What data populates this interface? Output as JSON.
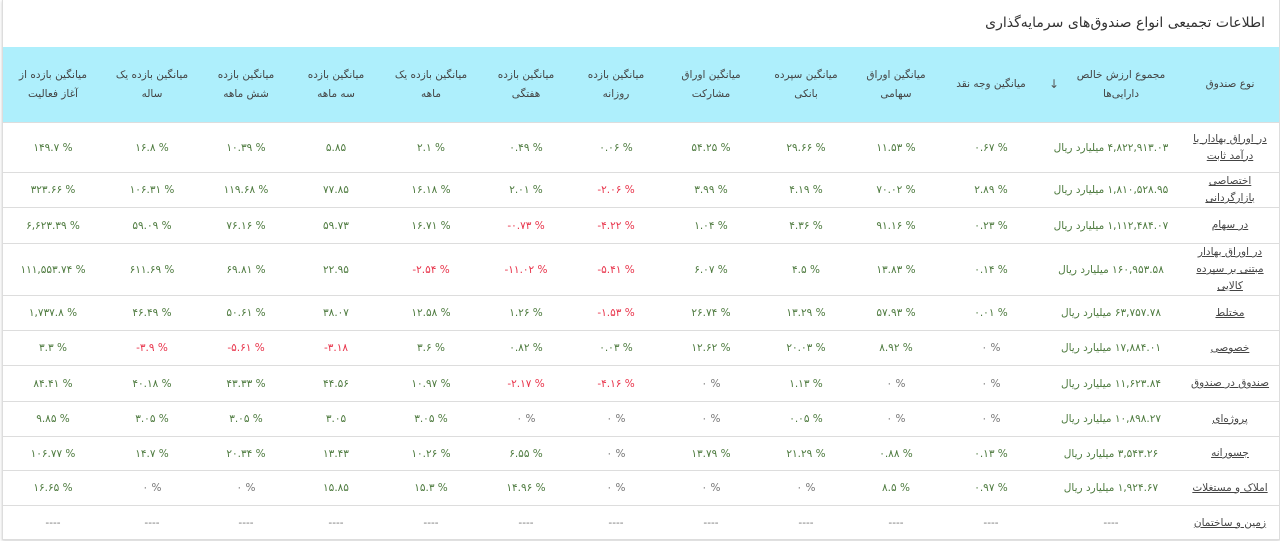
{
  "title": "اطلاعات تجمیعی انواع صندوق‌های سرمایه‌گذاری",
  "colors": {
    "header_bg": "#aeeffc",
    "positive": "#4d7a3e",
    "negative": "#e8334a",
    "zero": "#777777"
  },
  "columns": [
    "نوع صندوق",
    "مجموع ارزش خالص دارایی‌ها",
    "میانگین وجه نقد",
    "میانگین اوراق سهامی",
    "میانگین سپرده بانکی",
    "میانگین اوراق مشارکت",
    "میانگین بازده روزانه",
    "میانگین بازده هفتگی",
    "میانگین بازده یک ماهه",
    "میانگین بازده سه ماهه",
    "میانگین بازده شش ماهه",
    "میانگین بازده یک ساله",
    "میانگین بازده از آغاز فعالیت"
  ],
  "sort_icon": "arrow-down-icon",
  "rows": [
    {
      "name": "در اوراق بهادار با درآمد ثابت",
      "values": [
        "۴,۸۲۲,۹۱۳.۰۳ میلیارد ریال",
        "۰.۶۷ %",
        "۱۱.۵۳ %",
        "۲۹.۶۶ %",
        "۵۴.۲۵ %",
        "۰.۰۶ %",
        "۰.۴۹ %",
        "۲.۱ %",
        "۵.۸۵",
        "۱۰.۳۹ %",
        "۱۶.۸ %",
        "۱۴۹.۷ %"
      ]
    },
    {
      "name": "اختصاصی بازارگردانی",
      "values": [
        "۱,۸۱۰,۵۲۸.۹۵ میلیارد ریال",
        "۲.۸۹ %",
        "۷۰.۰۲ %",
        "۴.۱۹ %",
        "۳.۹۹ %",
        "-۲.۰۶ %",
        "۲.۰۱ %",
        "۱۶.۱۸ %",
        "۷۷.۸۵",
        "۱۱۹.۶۸ %",
        "۱۰۶.۳۱ %",
        "۳۲۳.۶۶ %"
      ]
    },
    {
      "name": "در سهام",
      "values": [
        "۱,۱۱۲,۴۸۴.۰۷ میلیارد ریال",
        "۰.۲۳ %",
        "۹۱.۱۶ %",
        "۴.۳۶ %",
        "۱.۰۴ %",
        "-۴.۲۲ %",
        "-۰.۷۳ %",
        "۱۶.۷۱ %",
        "۵۹.۷۳",
        "۷۶.۱۶ %",
        "۵۹.۰۹ %",
        "۶,۶۲۳.۳۹ %"
      ]
    },
    {
      "name": "در اوراق بهادار مبتنی بر سپرده کالایی",
      "values": [
        "۱۶۰,۹۵۳.۵۸ میلیارد ریال",
        "۰.۱۴ %",
        "۱۳.۸۳ %",
        "۴.۵ %",
        "۶.۰۷ %",
        "-۵.۴۱ %",
        "-۱۱.۰۲ %",
        "-۲.۵۴ %",
        "۲۲.۹۵",
        "۶۹.۸۱ %",
        "۶۱۱.۶۹ %",
        "۱۱۱,۵۵۳.۷۴ %"
      ]
    },
    {
      "name": "مختلط",
      "values": [
        "۶۳,۷۵۷.۷۸ میلیارد ریال",
        "۰.۰۱ %",
        "۵۷.۹۳ %",
        "۱۳.۲۹ %",
        "۲۶.۷۴ %",
        "-۱.۵۳ %",
        "۱.۲۶ %",
        "۱۲.۵۸ %",
        "۳۸.۰۷",
        "۵۰.۶۱ %",
        "۴۶.۴۹ %",
        "۱,۷۳۷.۸ %"
      ]
    },
    {
      "name": "خصوصی",
      "values": [
        "۱۷,۸۸۴.۰۱ میلیارد ریال",
        "۰ %",
        "۸.۹۲ %",
        "۲۰.۰۳ %",
        "۱۲.۶۲ %",
        "۰.۰۳ %",
        "۰.۸۲ %",
        "۳.۶ %",
        "-۳.۱۸",
        "-۵.۶۱ %",
        "-۳.۹ %",
        "۳.۳ %"
      ]
    },
    {
      "name": "صندوق در صندوق",
      "values": [
        "۱۱,۶۲۳.۸۴ میلیارد ریال",
        "۰ %",
        "۰ %",
        "۱.۱۳ %",
        "۰ %",
        "-۴.۱۶ %",
        "-۲.۱۷ %",
        "۱۰.۹۷ %",
        "۴۴.۵۶",
        "۴۳.۳۳ %",
        "۴۰.۱۸ %",
        "۸۴.۴۱ %"
      ]
    },
    {
      "name": "پروژه‌ای",
      "values": [
        "۱۰,۸۹۸.۲۷ میلیارد ریال",
        "۰ %",
        "۰ %",
        "۰.۰۵ %",
        "۰ %",
        "۰ %",
        "۰ %",
        "۳.۰۵ %",
        "۳.۰۵",
        "۳.۰۵ %",
        "۳.۰۵ %",
        "۹.۸۵ %"
      ]
    },
    {
      "name": "جسورانه",
      "values": [
        "۳,۵۴۳.۲۶ میلیارد ریال",
        "۰.۱۳ %",
        "۰.۸۸ %",
        "۲۱.۲۹ %",
        "۱۳.۷۹ %",
        "۰ %",
        "۶.۵۵ %",
        "۱۰.۲۶ %",
        "۱۳.۴۳",
        "۲۰.۳۴ %",
        "۱۴.۷ %",
        "۱۰۶.۷۷ %"
      ]
    },
    {
      "name": "املاک و مستغلات",
      "values": [
        "۱,۹۲۴.۶۷ میلیارد ریال",
        "۰.۹۷ %",
        "۸.۵ %",
        "۰ %",
        "۰ %",
        "۰ %",
        "۱۴.۹۶ %",
        "۱۵.۳ %",
        "۱۵.۸۵",
        "۰ %",
        "۰ %",
        "۱۶.۶۵ %"
      ]
    },
    {
      "name": "زمین و ساختمان",
      "values": [
        "----",
        "----",
        "----",
        "----",
        "----",
        "----",
        "----",
        "----",
        "----",
        "----",
        "----",
        "----"
      ]
    }
  ]
}
